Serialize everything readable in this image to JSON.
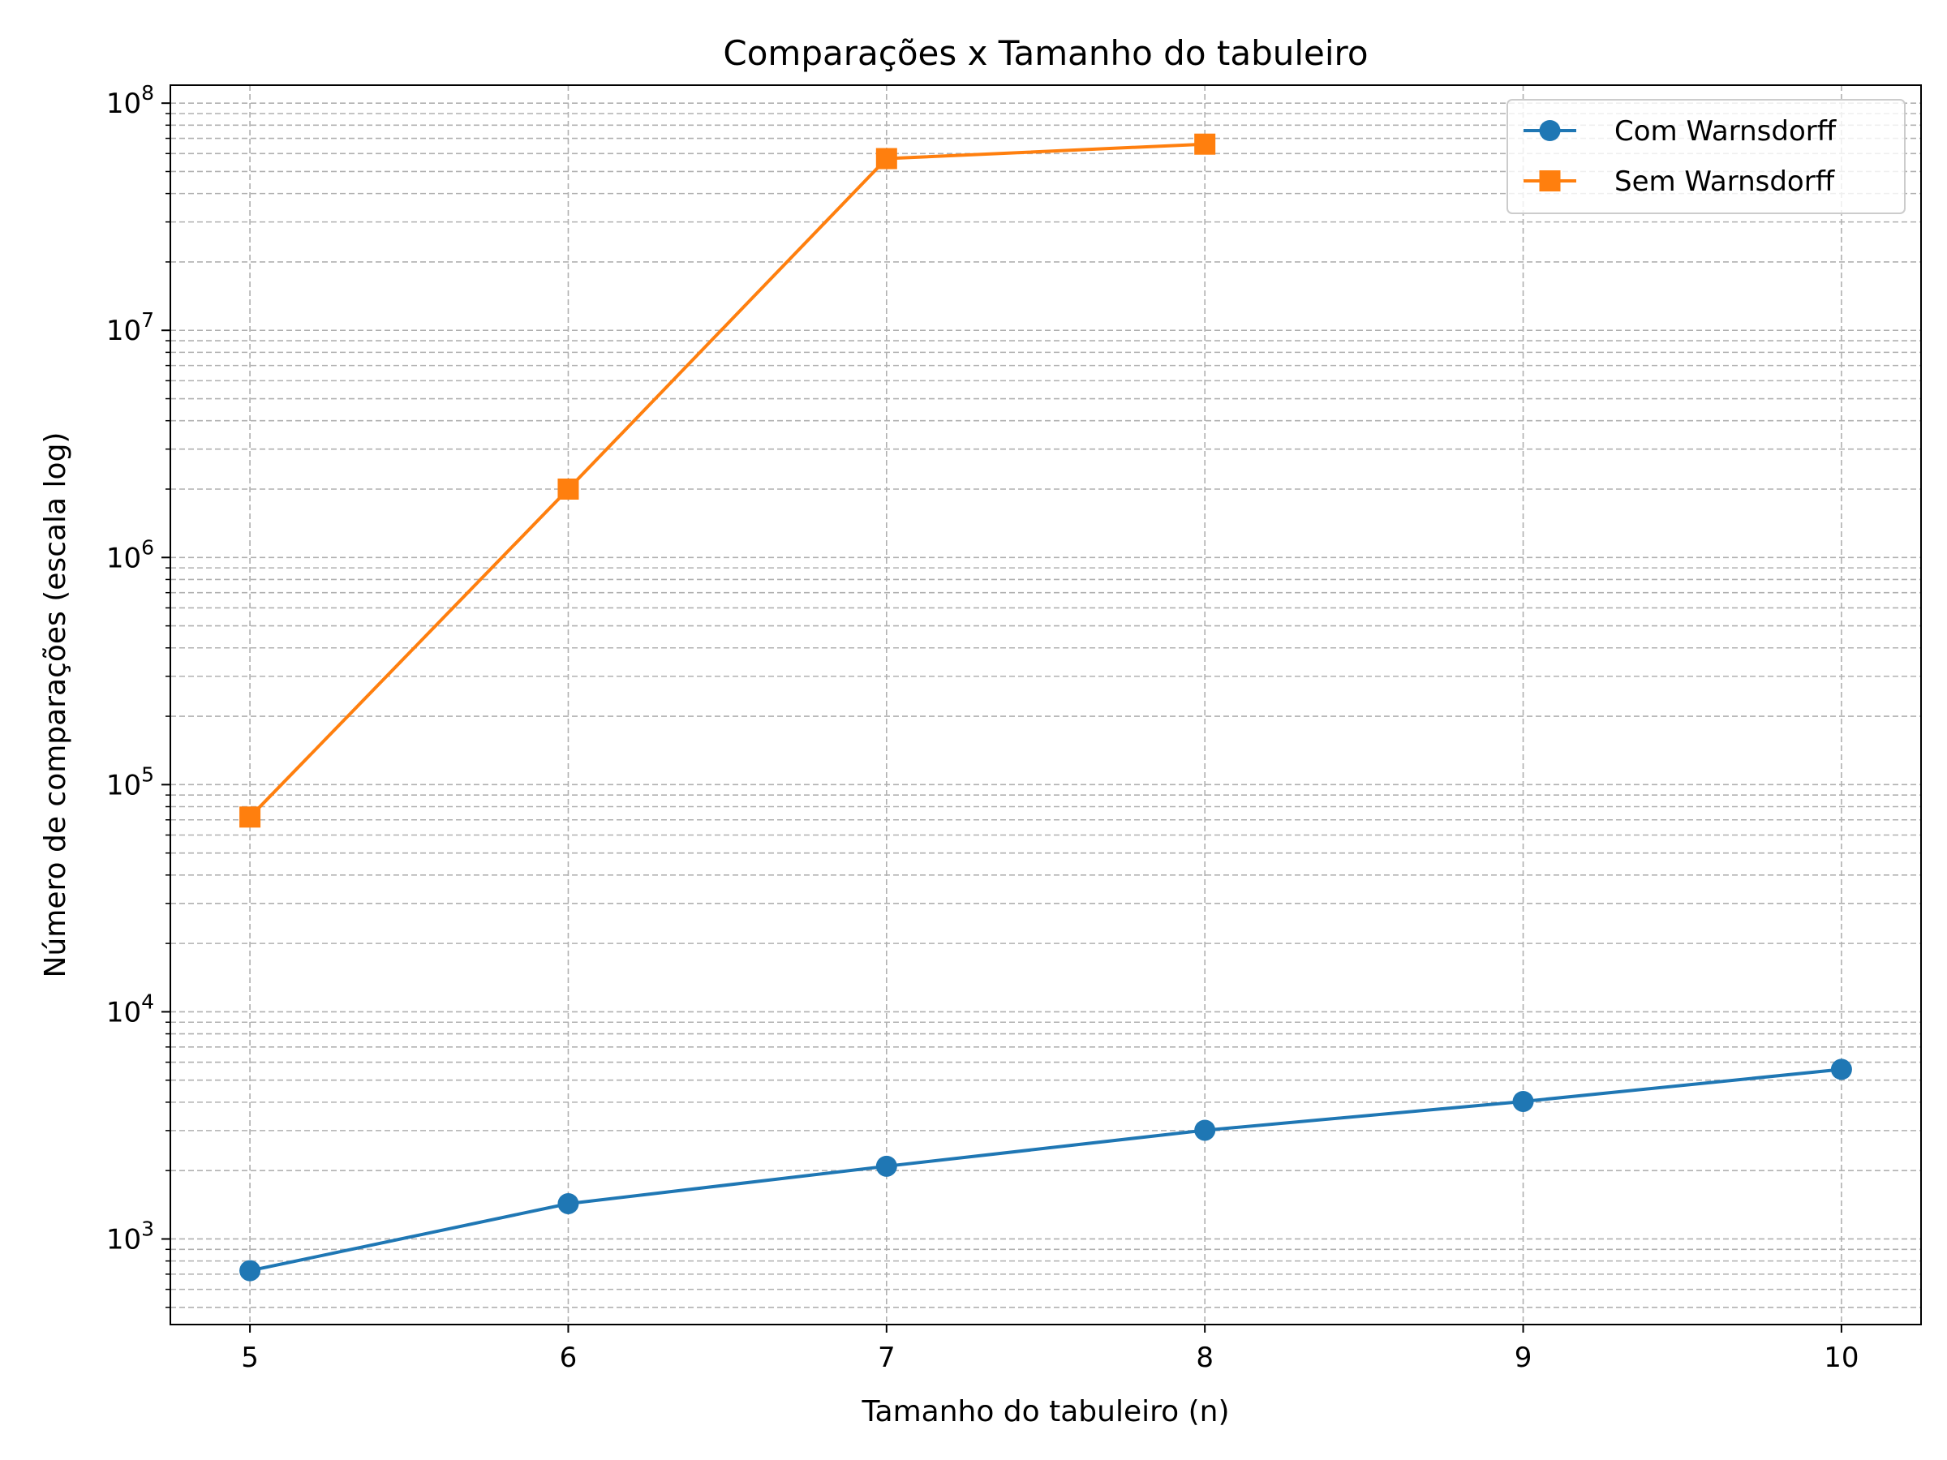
{
  "chart_data": {
    "type": "line",
    "title": "Comparações x Tamanho do tabuleiro",
    "xlabel": "Tamanho do tabuleiro (n)",
    "ylabel": "Número de comparações (escala log)",
    "yscale": "log",
    "x_ticks": [
      5,
      6,
      7,
      8,
      9,
      10
    ],
    "y_ticks": [
      {
        "value": 1000,
        "base": "10",
        "exp": "3"
      },
      {
        "value": 10000,
        "base": "10",
        "exp": "4"
      },
      {
        "value": 100000,
        "base": "10",
        "exp": "5"
      },
      {
        "value": 1000000,
        "base": "10",
        "exp": "6"
      },
      {
        "value": 10000000,
        "base": "10",
        "exp": "7"
      },
      {
        "value": 100000000,
        "base": "10",
        "exp": "8"
      }
    ],
    "xlim": [
      4.75,
      10.25
    ],
    "ylim": [
      420,
      120000000
    ],
    "grid": true,
    "grid_minor": true,
    "legend_position": "top-right",
    "series": [
      {
        "name": "Com Warnsdorff",
        "color": "#1f77b4",
        "marker": "circle",
        "x": [
          5,
          6,
          7,
          8,
          9,
          10
        ],
        "y": [
          725,
          1430,
          2090,
          3010,
          4030,
          5580
        ]
      },
      {
        "name": "Sem Warnsdorff",
        "color": "#ff7f0e",
        "marker": "square",
        "x": [
          5,
          6,
          7,
          8
        ],
        "y": [
          72000,
          2000000,
          57000000,
          66000000
        ]
      }
    ]
  }
}
